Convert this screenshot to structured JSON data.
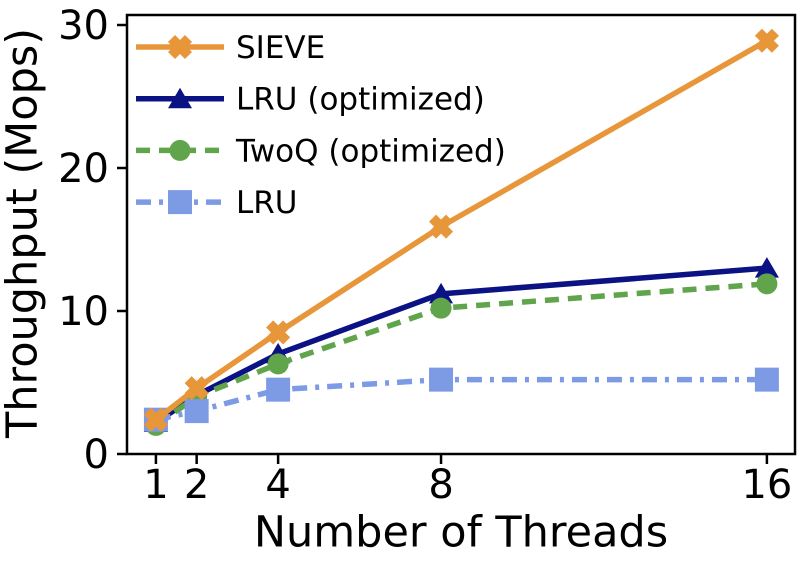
{
  "chart_data": {
    "type": "line",
    "title": "",
    "xlabel": "Number of Threads",
    "ylabel": "Throughput (Mops)",
    "x": [
      1,
      2,
      4,
      8,
      16
    ],
    "x_ticks": [
      1,
      2,
      4,
      8,
      16
    ],
    "y_ticks": [
      0,
      10,
      20,
      30
    ],
    "xlim": [
      0.29,
      16.69
    ],
    "ylim": [
      0,
      30.7
    ],
    "grid": false,
    "legend_position": "upper-left",
    "legend_frame": false,
    "series": [
      {
        "name": "SIEVE",
        "color": "#E8963A",
        "marker": "x",
        "linestyle": "solid",
        "values": [
          2.4,
          4.6,
          8.5,
          15.9,
          28.9
        ]
      },
      {
        "name": "LRU (optimized)",
        "color": "#0B1283",
        "marker": "triangle",
        "linestyle": "solid",
        "values": [
          2.2,
          4.1,
          7.0,
          11.2,
          13.0
        ]
      },
      {
        "name": "TwoQ (optimized)",
        "color": "#60A44B",
        "marker": "circle",
        "linestyle": "dashed",
        "values": [
          2.0,
          4.0,
          6.3,
          10.2,
          11.9
        ]
      },
      {
        "name": "LRU",
        "color": "#7D9BE5",
        "marker": "square",
        "linestyle": "dashdot",
        "values": [
          2.4,
          3.0,
          4.5,
          5.2,
          5.2
        ]
      }
    ],
    "axis_color": "#000000",
    "text_color": "#000000"
  }
}
